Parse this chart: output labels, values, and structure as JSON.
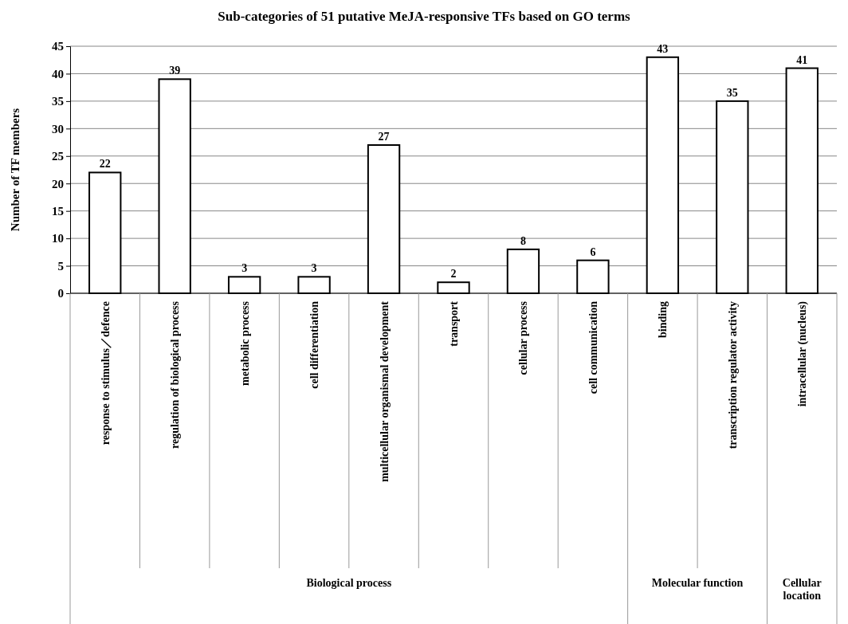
{
  "chart_data": {
    "type": "bar",
    "title": "Sub-categories of 51 putative MeJA-responsive TFs based on GO terms",
    "ylabel": "Number of TF members",
    "categories": [
      "response to stimulus／defence",
      "regulation of biological process",
      "metabolic process",
      "cell differentiation",
      "multicellular organismal development",
      "transport",
      "cellular process",
      "cell communication",
      "binding",
      "transcription regulator activity",
      "intracellular (nucleus)"
    ],
    "values": [
      22,
      39,
      3,
      3,
      27,
      2,
      8,
      6,
      43,
      35,
      41
    ],
    "color": "#ffffff",
    "ylim": [
      0,
      45
    ],
    "yticks": [
      0,
      5,
      10,
      15,
      20,
      25,
      30,
      35,
      40,
      45
    ],
    "grid": "y",
    "data_labels": true,
    "annotations": [
      "Biological process",
      "Molecular function",
      "Cellular location"
    ]
  }
}
